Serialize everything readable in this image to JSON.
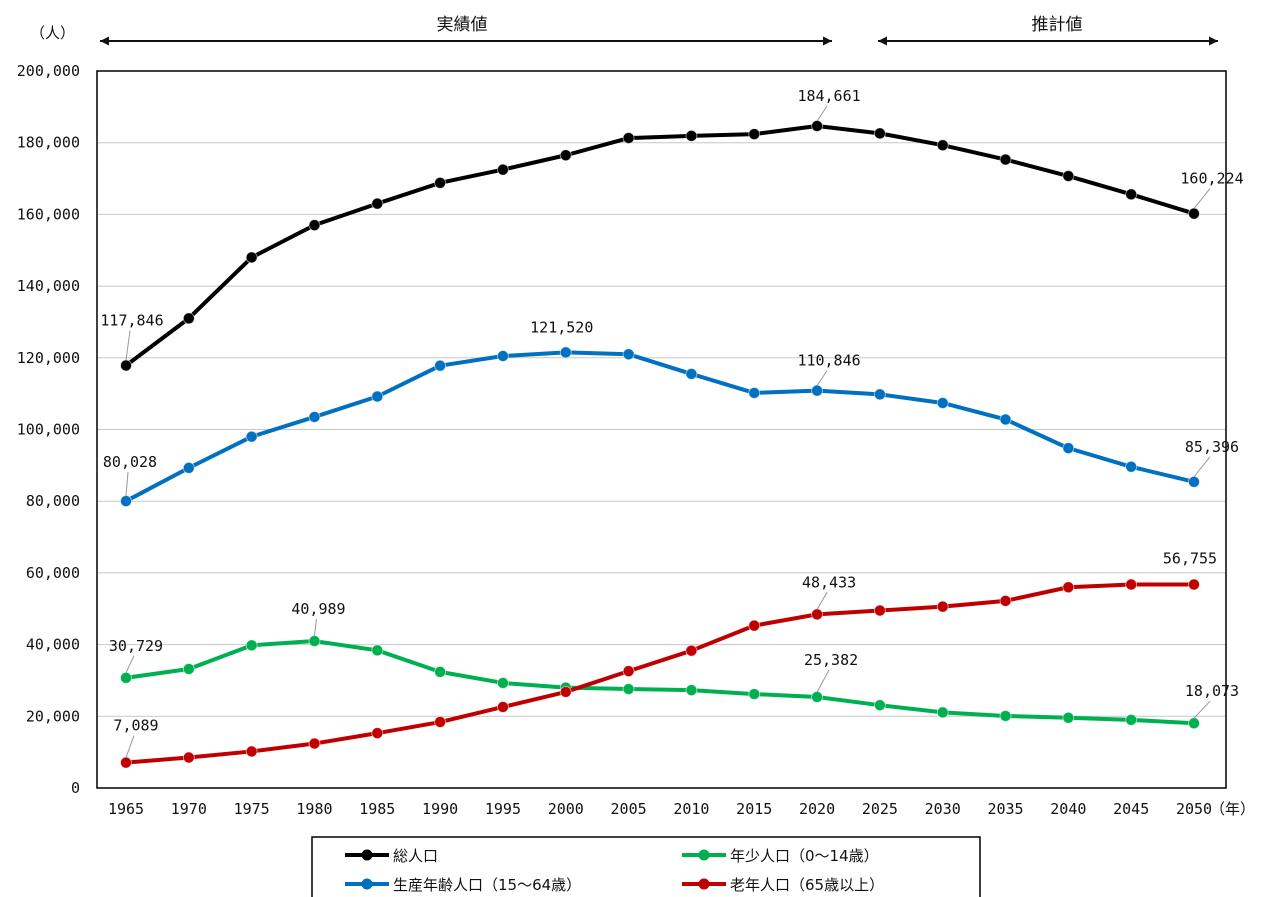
{
  "chart_data": {
    "type": "line",
    "y_unit": "（人）",
    "x_unit": "（年）",
    "ylim": [
      0,
      200000
    ],
    "y_ticks": [
      0,
      20000,
      40000,
      60000,
      80000,
      100000,
      120000,
      140000,
      160000,
      180000,
      200000
    ],
    "y_tick_labels": [
      "0",
      "20,000",
      "40,000",
      "60,000",
      "80,000",
      "100,000",
      "120,000",
      "140,000",
      "160,000",
      "180,000",
      "200,000"
    ],
    "x": [
      1965,
      1970,
      1975,
      1980,
      1985,
      1990,
      1995,
      2000,
      2005,
      2010,
      2015,
      2020,
      2025,
      2030,
      2035,
      2040,
      2045,
      2050
    ],
    "grid": "horizontal",
    "periods": [
      {
        "label": "実績値",
        "from": 1965,
        "to": 2020
      },
      {
        "label": "推計値",
        "from": 2025,
        "to": 2050
      }
    ],
    "series": [
      {
        "name": "総人口",
        "color": "#000000",
        "values": [
          117846,
          131000,
          148000,
          157000,
          163000,
          168800,
          172500,
          176500,
          181300,
          181900,
          182400,
          184661,
          182600,
          179300,
          175300,
          170700,
          165600,
          160224
        ],
        "labels": [
          {
            "index": 0,
            "text": "117,846"
          },
          {
            "index": 11,
            "text": "184,661"
          },
          {
            "index": 17,
            "text": "160,224"
          }
        ]
      },
      {
        "name": "生産年齢人口（15～64歳）",
        "color": "#0070c0",
        "values": [
          80028,
          89300,
          98000,
          103500,
          109200,
          117800,
          120500,
          121520,
          121000,
          115500,
          110200,
          110846,
          109800,
          107400,
          102800,
          94800,
          89600,
          85396
        ],
        "labels": [
          {
            "index": 0,
            "text": "80,028"
          },
          {
            "index": 7,
            "text": "121,520"
          },
          {
            "index": 11,
            "text": "110,846"
          },
          {
            "index": 17,
            "text": "85,396"
          }
        ]
      },
      {
        "name": "年少人口（0～14歳）",
        "color": "#00b050",
        "values": [
          30729,
          33200,
          39800,
          40989,
          38400,
          32400,
          29300,
          28000,
          27600,
          27300,
          26200,
          25382,
          23100,
          21100,
          20100,
          19600,
          19000,
          18073
        ],
        "labels": [
          {
            "index": 0,
            "text": "30,729"
          },
          {
            "index": 3,
            "text": "40,989"
          },
          {
            "index": 11,
            "text": "25,382"
          },
          {
            "index": 17,
            "text": "18,073"
          }
        ]
      },
      {
        "name": "老年人口（65歳以上）",
        "color": "#c00000",
        "values": [
          7089,
          8500,
          10200,
          12400,
          15300,
          18400,
          22600,
          26800,
          32600,
          38300,
          45300,
          48433,
          49500,
          50600,
          52200,
          56000,
          56755,
          56755
        ],
        "labels": [
          {
            "index": 0,
            "text": "7,089"
          },
          {
            "index": 11,
            "text": "48,433"
          },
          {
            "index": 17,
            "text": "56,755"
          }
        ]
      }
    ],
    "legend": {
      "placement": "bottom",
      "order": [
        "総人口",
        "年少人口（0～14歳）",
        "生産年齢人口（15～64歳）",
        "老年人口（65歳以上）"
      ]
    }
  }
}
